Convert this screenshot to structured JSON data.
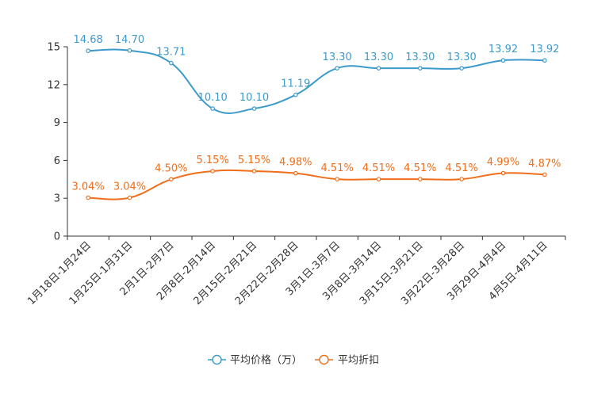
{
  "chart_data": {
    "type": "line",
    "categories": [
      "1月18日-1月24日",
      "1月25日-1月31日",
      "2月1日-2月7日",
      "2月8日-2月14日",
      "2月15日-2月21日",
      "2月22日-2月28日",
      "3月1日-3月7日",
      "3月8日-3月14日",
      "3月15日-3月21日",
      "3月22日-3月28日",
      "3月29日-4月4日",
      "4月5日-4月11日"
    ],
    "yticks": [
      "0",
      "3",
      "6",
      "9",
      "12",
      "15"
    ],
    "ylim": [
      0,
      15
    ],
    "series": [
      {
        "name": "平均价格（万）",
        "color": "#3c9acb",
        "values": [
          14.68,
          14.7,
          13.71,
          10.1,
          10.1,
          11.19,
          13.3,
          13.3,
          13.3,
          13.3,
          13.92,
          13.92
        ],
        "labels": [
          "14.68",
          "14.70",
          "13.71",
          "10.10",
          "10.10",
          "11.19",
          "13.30",
          "13.30",
          "13.30",
          "13.30",
          "13.92",
          "13.92"
        ]
      },
      {
        "name": "平均折扣",
        "color": "#f06e1a",
        "values": [
          3.04,
          3.04,
          4.5,
          5.15,
          5.15,
          4.98,
          4.51,
          4.51,
          4.51,
          4.51,
          4.99,
          4.87
        ],
        "labels": [
          "3.04%",
          "3.04%",
          "4.50%",
          "5.15%",
          "5.15%",
          "4.98%",
          "4.51%",
          "4.51%",
          "4.51%",
          "4.51%",
          "4.99%",
          "4.87%"
        ]
      }
    ],
    "legend_position": "bottom-center",
    "grid": false
  }
}
